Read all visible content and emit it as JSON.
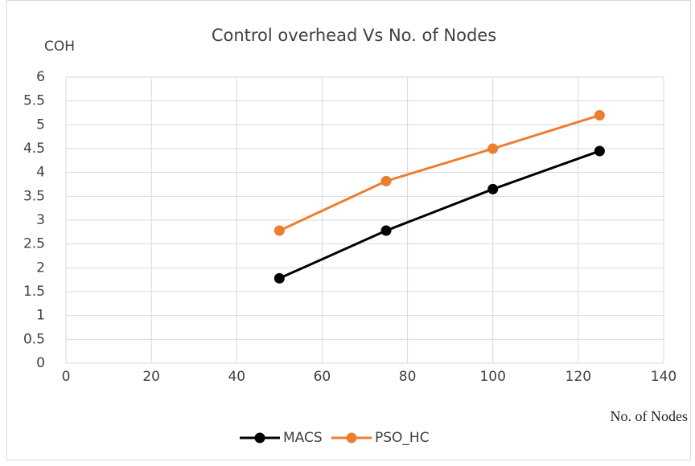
{
  "chart_data": {
    "type": "line",
    "title": "Control overhead Vs No. of Nodes",
    "y_label": "COH",
    "x_label": "No. of Nodes",
    "x": [
      50,
      75,
      100,
      125
    ],
    "series": [
      {
        "name": "MACS",
        "color": "#000000",
        "values": [
          1.78,
          2.78,
          3.65,
          4.45
        ]
      },
      {
        "name": "PSO_HC",
        "color": "#ed7d31",
        "values": [
          2.78,
          3.82,
          4.5,
          5.2
        ]
      }
    ],
    "xlim": [
      0,
      140
    ],
    "xticks": [
      0,
      20,
      40,
      60,
      80,
      100,
      120,
      140
    ],
    "ylim": [
      0,
      6
    ],
    "yticks": [
      0,
      0.5,
      1,
      1.5,
      2,
      2.5,
      3,
      3.5,
      4,
      4.5,
      5,
      5.5,
      6
    ],
    "grid": true,
    "legend": "bottom"
  }
}
